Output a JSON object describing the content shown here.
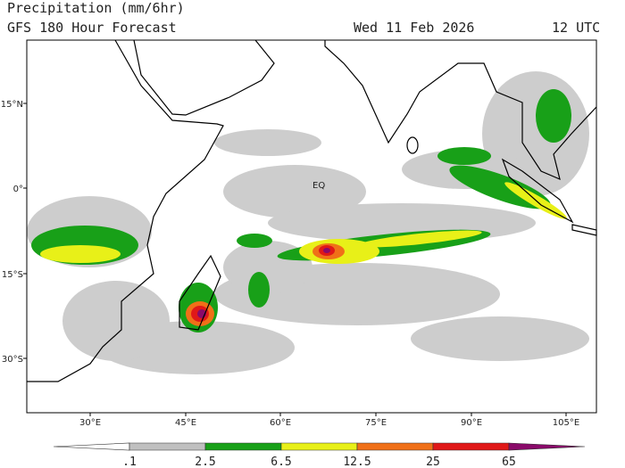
{
  "header": {
    "title": "Precipitation (mm/6hr)",
    "subtitle": "GFS 180 Hour Forecast",
    "date": "Wed 11 Feb 2026",
    "time": "12 UTC"
  },
  "map": {
    "lat_labels": [
      "15°N",
      "0°",
      "15°S",
      "30°S"
    ],
    "lon_labels": [
      "30°E",
      "45°E",
      "60°E",
      "75°E",
      "90°E",
      "105°E"
    ],
    "equator_label": "EQ"
  },
  "colorbar": {
    "labels": [
      ".1",
      "2.5",
      "6.5",
      "12.5",
      "25",
      "65"
    ],
    "colors": [
      "#ffffff",
      "#c0c0c0",
      "#18a018",
      "#e8f018",
      "#f07018",
      "#e01818",
      "#8a0a6a"
    ]
  }
}
